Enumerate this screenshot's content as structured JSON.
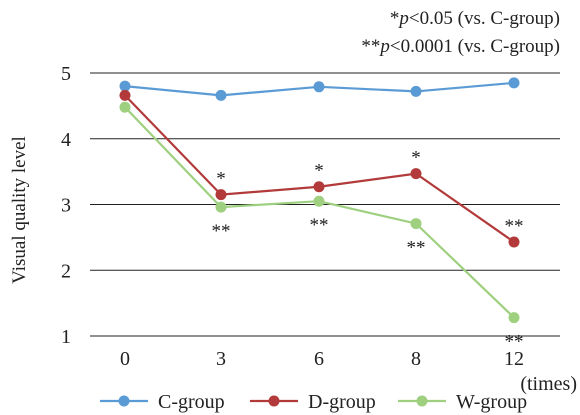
{
  "chart_data": {
    "type": "line",
    "categories": [
      "0",
      "3",
      "6",
      "8",
      "12"
    ],
    "xunit": "(times)",
    "ylabel": "Visual quality level",
    "yticks": [
      1,
      2,
      3,
      4,
      5
    ],
    "ylim": [
      1,
      5
    ],
    "grid": "horizontal",
    "legend_position": "bottom",
    "notes": [
      {
        "stars": "*",
        "prefix": "p",
        "text": "<0.05 (vs. C-group)"
      },
      {
        "stars": "**",
        "prefix": "p",
        "text": "<0.0001 (vs. C-group)"
      }
    ],
    "series": [
      {
        "name": "C-group",
        "color": "#5b9bd5",
        "values": [
          4.8,
          4.66,
          4.79,
          4.72,
          4.85
        ],
        "marks": [
          "",
          "",
          "",
          "",
          ""
        ]
      },
      {
        "name": "D-group",
        "color": "#b23a3a",
        "values": [
          4.66,
          3.15,
          3.27,
          3.47,
          2.43
        ],
        "marks": [
          "",
          "*",
          "*",
          "*",
          "**"
        ]
      },
      {
        "name": "W-group",
        "color": "#9ed07f",
        "values": [
          4.48,
          2.96,
          3.05,
          2.71,
          1.28
        ],
        "marks": [
          "",
          "**",
          "**",
          "**",
          "**"
        ]
      }
    ]
  }
}
